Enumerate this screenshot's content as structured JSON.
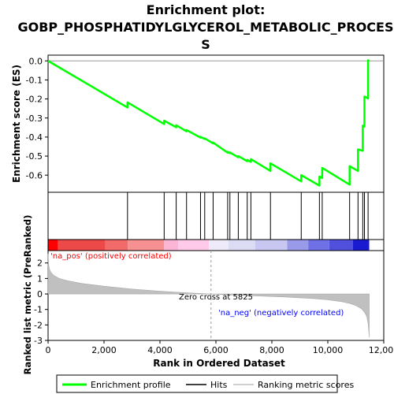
{
  "chart_data": {
    "type": "line",
    "title": "Enrichment plot: GOBP_PHOSPHATIDYLGLYCEROL_METABOLIC_PROCESS",
    "title_lines": [
      "Enrichment plot:",
      "GOBP_PHOSPHATIDYLGLYCEROL_METABOLIC_PROCES",
      "S"
    ],
    "es_panel": {
      "ylabel": "Enrichment score (ES)",
      "ylim": [
        -0.69,
        0.03
      ],
      "yticks": [
        0.0,
        -0.1,
        -0.2,
        -0.3,
        -0.4,
        -0.5,
        -0.6
      ],
      "ytick_labels": [
        "0.0",
        "-0.1",
        "-0.2",
        "-0.3",
        "-0.4",
        "-0.5",
        "-0.6"
      ],
      "series": [
        {
          "name": "Enrichment profile",
          "color": "#00ff00",
          "x": [
            0,
            2840,
            2840,
            4150,
            4150,
            4580,
            4580,
            4950,
            4950,
            5450,
            5450,
            5600,
            5600,
            5900,
            5900,
            6420,
            6420,
            6500,
            6500,
            6800,
            6800,
            7120,
            7120,
            7250,
            7250,
            7950,
            7950,
            9050,
            9050,
            9700,
            9700,
            9800,
            9800,
            10780,
            10780,
            11080,
            11080,
            11250,
            11250,
            11310,
            11310,
            11440,
            11440,
            11480
          ],
          "y": [
            0.0,
            -0.245,
            -0.218,
            -0.332,
            -0.314,
            -0.349,
            -0.338,
            -0.37,
            -0.363,
            -0.403,
            -0.399,
            -0.41,
            -0.407,
            -0.433,
            -0.429,
            -0.482,
            -0.477,
            -0.485,
            -0.481,
            -0.506,
            -0.5,
            -0.527,
            -0.52,
            -0.53,
            -0.516,
            -0.578,
            -0.538,
            -0.633,
            -0.6,
            -0.655,
            -0.607,
            -0.615,
            -0.562,
            -0.65,
            -0.553,
            -0.578,
            -0.465,
            -0.472,
            -0.34,
            -0.345,
            -0.187,
            -0.197,
            0.003,
            0.0
          ]
        }
      ]
    },
    "hits_panel": {
      "series_name": "Hits",
      "hit_ranks": [
        2840,
        4150,
        4580,
        4950,
        5450,
        5600,
        5900,
        6420,
        6500,
        6800,
        7120,
        7250,
        7950,
        9050,
        9700,
        9800,
        10780,
        11080,
        11250,
        11310,
        11440
      ]
    },
    "heatmap_bar": {
      "segments": [
        {
          "end": 350,
          "color": "#ff0000"
        },
        {
          "end": 2050,
          "color": "#ee4949"
        },
        {
          "end": 2850,
          "color": "#f26a6a"
        },
        {
          "end": 4150,
          "color": "#f79090"
        },
        {
          "end": 4650,
          "color": "#fdb5d6"
        },
        {
          "end": 5750,
          "color": "#ffcaea"
        },
        {
          "end": 6450,
          "color": "#eeeaf9"
        },
        {
          "end": 7400,
          "color": "#dcdcf4"
        },
        {
          "end": 8550,
          "color": "#c7c7f1"
        },
        {
          "end": 9300,
          "color": "#9a9aea"
        },
        {
          "end": 10050,
          "color": "#7070e6"
        },
        {
          "end": 10900,
          "color": "#5050dd"
        },
        {
          "end": 11480,
          "color": "#1a1ad0"
        }
      ],
      "pos_label": "'na_pos' (positively correlated)",
      "neg_label": "'na_neg' (negatively correlated)",
      "pos_color": "#ff0000",
      "neg_color": "#0000ff"
    },
    "metric_panel": {
      "series_name": "Ranking metric scores",
      "ylabel": "Ranked list metric (PreRanked)",
      "ylim": [
        -3,
        2.8
      ],
      "yticks": [
        2,
        1,
        0,
        -1,
        -2,
        -3
      ],
      "ytick_labels": [
        "2",
        "1",
        "0",
        "-1",
        "-2",
        "-3"
      ],
      "x": [
        0,
        20,
        50,
        100,
        200,
        400,
        700,
        1200,
        2000,
        3000,
        4000,
        5000,
        5825,
        6500,
        7500,
        8500,
        9500,
        10000,
        10500,
        10800,
        11000,
        11200,
        11320,
        11400,
        11440,
        11470,
        11480
      ],
      "y": [
        2.6,
        1.9,
        1.6,
        1.4,
        1.2,
        1.0,
        0.85,
        0.68,
        0.5,
        0.32,
        0.18,
        0.07,
        0.0,
        -0.06,
        -0.13,
        -0.2,
        -0.3,
        -0.38,
        -0.5,
        -0.62,
        -0.75,
        -0.95,
        -1.2,
        -1.5,
        -1.9,
        -2.5,
        -2.8
      ],
      "fill_color": "#c0c0c0",
      "zero_cross": 5825,
      "zero_cross_label": "Zero cross at 5825"
    },
    "xaxis": {
      "xlabel": "Rank in Ordered Dataset",
      "xlim": [
        0,
        12000
      ],
      "xticks": [
        0,
        2000,
        4000,
        6000,
        8000,
        10000,
        12000
      ],
      "xtick_labels": [
        "0",
        "2,000",
        "4,000",
        "6,000",
        "8,000",
        "10,000",
        "12,000"
      ]
    },
    "legend": {
      "placement": "bottom",
      "entries": [
        {
          "label": "Enrichment profile",
          "color": "#00ff00"
        },
        {
          "label": "Hits",
          "color": "#000000"
        },
        {
          "label": "Ranking metric scores",
          "color": "#c0c0c0"
        }
      ]
    }
  }
}
